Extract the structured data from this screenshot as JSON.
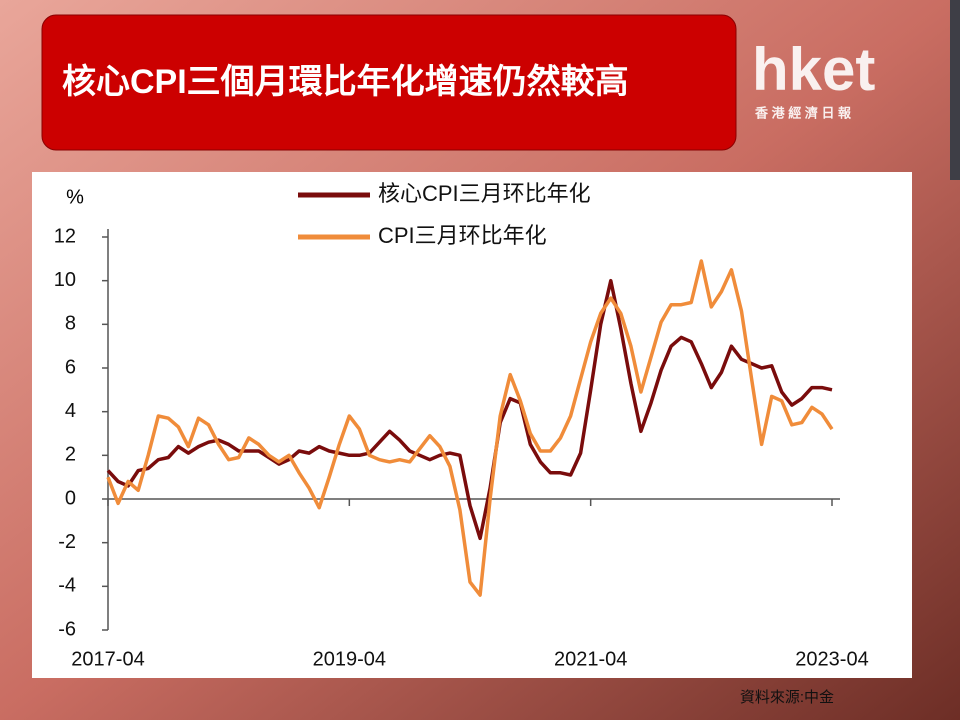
{
  "slide": {
    "title": "核心CPI三個月環比年化增速仍然較高",
    "logo": "hket",
    "logo_subtitle": "香 港 經 濟 日 報",
    "source": "資料來源:中金"
  },
  "chart_data": {
    "type": "line",
    "y_label": "%",
    "categories": [
      "2017-04",
      null,
      null,
      null,
      null,
      null,
      null,
      null,
      null,
      null,
      null,
      null,
      null,
      null,
      null,
      null,
      null,
      null,
      null,
      null,
      null,
      null,
      null,
      null,
      "2019-04",
      null,
      null,
      null,
      null,
      null,
      null,
      null,
      null,
      null,
      null,
      null,
      null,
      null,
      null,
      null,
      null,
      null,
      null,
      null,
      null,
      null,
      null,
      null,
      "2021-04",
      null,
      null,
      null,
      null,
      null,
      null,
      null,
      null,
      null,
      null,
      null,
      null,
      null,
      null,
      null,
      null,
      null,
      null,
      null,
      null,
      null,
      null,
      null,
      "2023-04"
    ],
    "series": [
      {
        "name": "核心CPI三月环比年化",
        "color": "#7a0c0c",
        "values": [
          1.3,
          0.8,
          0.6,
          1.3,
          1.4,
          1.8,
          1.9,
          2.4,
          2.1,
          2.4,
          2.6,
          2.7,
          2.5,
          2.2,
          2.2,
          2.2,
          1.9,
          1.6,
          1.8,
          2.2,
          2.1,
          2.4,
          2.2,
          2.1,
          2.0,
          2.0,
          2.1,
          2.6,
          3.1,
          2.7,
          2.2,
          2.0,
          1.8,
          2.0,
          2.1,
          2.0,
          -0.3,
          -1.8,
          0.5,
          3.5,
          4.6,
          4.4,
          2.5,
          1.7,
          1.2,
          1.2,
          1.1,
          2.1,
          5.0,
          8.0,
          10.0,
          7.8,
          5.3,
          3.1,
          4.4,
          5.9,
          7.0,
          7.4,
          7.2,
          6.2,
          5.1,
          5.8,
          7.0,
          6.4,
          6.2,
          6.0,
          6.1,
          4.9,
          4.3,
          4.6,
          5.1,
          5.1,
          5.0
        ]
      },
      {
        "name": "CPI三月环比年化",
        "color": "#f08c3a",
        "values": [
          1.0,
          -0.2,
          0.8,
          0.4,
          2.0,
          3.8,
          3.7,
          3.3,
          2.4,
          3.7,
          3.4,
          2.5,
          1.8,
          1.9,
          2.8,
          2.5,
          2.0,
          1.7,
          2.0,
          1.2,
          0.5,
          -0.4,
          1.0,
          2.5,
          3.8,
          3.2,
          2.0,
          1.8,
          1.7,
          1.8,
          1.7,
          2.3,
          2.9,
          2.4,
          1.5,
          -0.5,
          -3.8,
          -4.4,
          0.0,
          3.8,
          5.7,
          4.5,
          3.0,
          2.2,
          2.2,
          2.8,
          3.8,
          5.5,
          7.2,
          8.5,
          9.2,
          8.5,
          7.0,
          4.9,
          6.5,
          8.1,
          8.9,
          8.9,
          9.0,
          10.9,
          8.8,
          9.5,
          10.5,
          8.6,
          5.5,
          2.5,
          4.7,
          4.5,
          3.4,
          3.5,
          4.2,
          3.9,
          3.2
        ]
      }
    ],
    "ylim": [
      -6,
      12
    ],
    "yticks": [
      -6,
      -4,
      -2,
      0,
      2,
      4,
      6,
      8,
      10,
      12
    ],
    "grid": false,
    "legend": "top"
  }
}
